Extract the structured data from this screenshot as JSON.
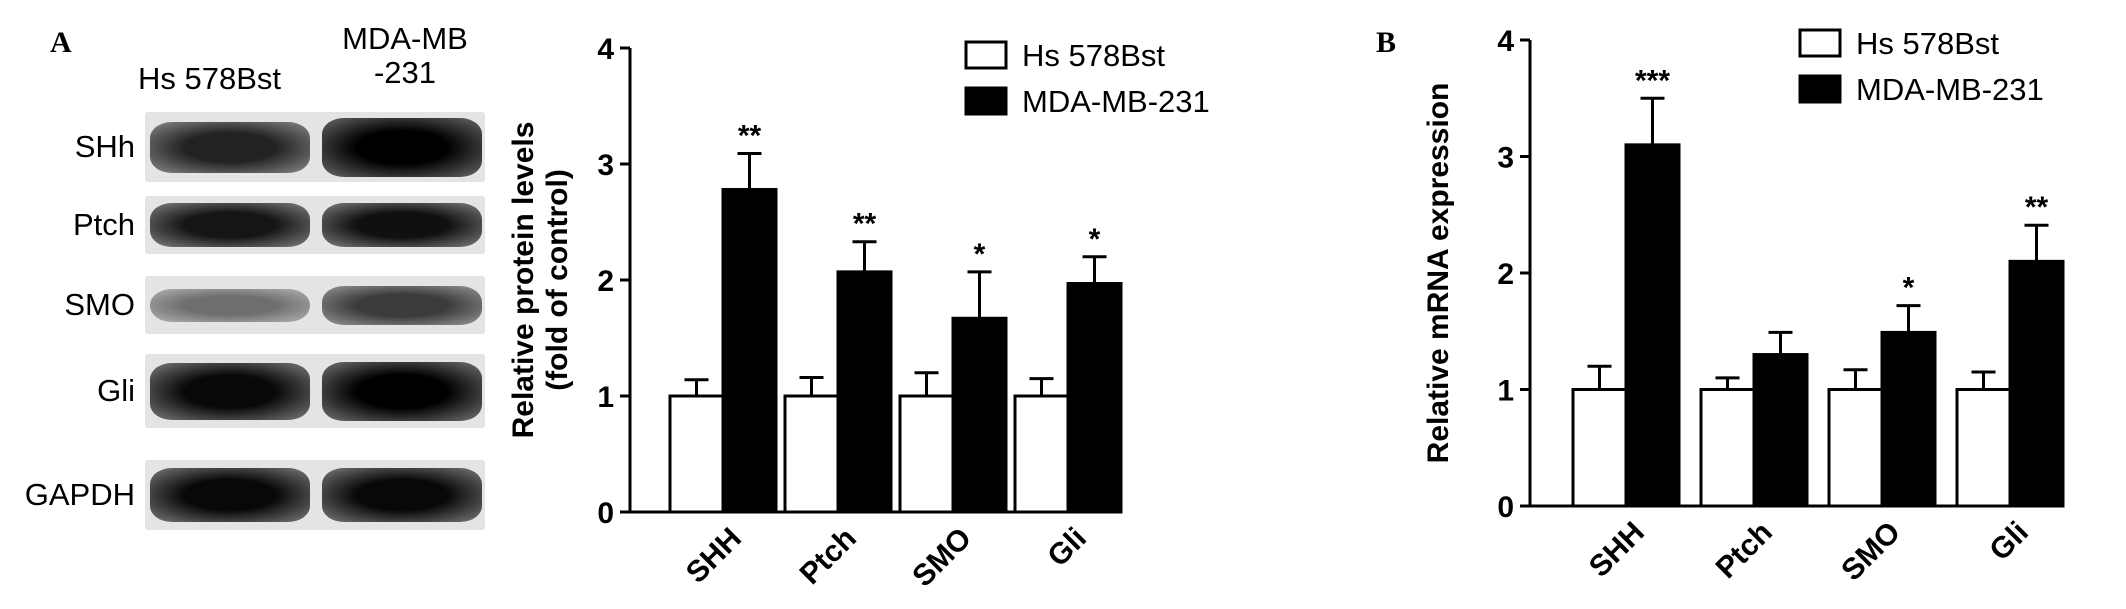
{
  "panel_a": {
    "letter": "A",
    "blot": {
      "column_headers": [
        "Hs 578Bst",
        "MDA-MB\n-231"
      ],
      "rows": [
        {
          "label": "SHh",
          "intensity": [
            0.75,
            0.98
          ]
        },
        {
          "label": "Ptch",
          "intensity": [
            0.8,
            0.82
          ]
        },
        {
          "label": "SMO",
          "intensity": [
            0.45,
            0.65
          ]
        },
        {
          "label": "Gli",
          "intensity": [
            0.85,
            0.9
          ]
        },
        {
          "label": "GAPDH",
          "intensity": [
            0.85,
            0.85
          ]
        }
      ]
    }
  },
  "panel_b": {
    "letter": "B"
  },
  "colors": {
    "control": "#ffffff",
    "treated": "#000000",
    "stroke": "#000000"
  },
  "chart_data": [
    {
      "type": "bar",
      "ylabel": "Relative protein levels\n(fold of control)",
      "xlabel": "",
      "categories": [
        "SHH",
        "Ptch",
        "SMO",
        "Gli"
      ],
      "ylim": [
        0,
        4
      ],
      "yticks": [
        0,
        1,
        2,
        3,
        4
      ],
      "legend_position": "top-right",
      "series": [
        {
          "name": "Hs 578Bst",
          "values": [
            1.0,
            1.0,
            1.0,
            1.0
          ],
          "errors": [
            0.14,
            0.16,
            0.2,
            0.15
          ]
        },
        {
          "name": "MDA-MB-231",
          "values": [
            2.78,
            2.07,
            1.67,
            1.97
          ],
          "errors": [
            0.31,
            0.26,
            0.4,
            0.23
          ]
        }
      ],
      "significance": [
        "**",
        "**",
        "*",
        "*"
      ]
    },
    {
      "type": "bar",
      "ylabel": "Relative mRNA expression",
      "xlabel": "",
      "categories": [
        "SHH",
        "Ptch",
        "SMO",
        "Gli"
      ],
      "ylim": [
        0,
        4
      ],
      "yticks": [
        0,
        1,
        2,
        3,
        4
      ],
      "legend_position": "top-right",
      "series": [
        {
          "name": "Hs 578Bst",
          "values": [
            1.0,
            1.0,
            1.0,
            1.0
          ],
          "errors": [
            0.2,
            0.1,
            0.17,
            0.15
          ]
        },
        {
          "name": "MDA-MB-231",
          "values": [
            3.1,
            1.3,
            1.49,
            2.1
          ],
          "errors": [
            0.4,
            0.19,
            0.23,
            0.31
          ]
        }
      ],
      "significance": [
        "***",
        "",
        "*",
        "**"
      ]
    }
  ]
}
